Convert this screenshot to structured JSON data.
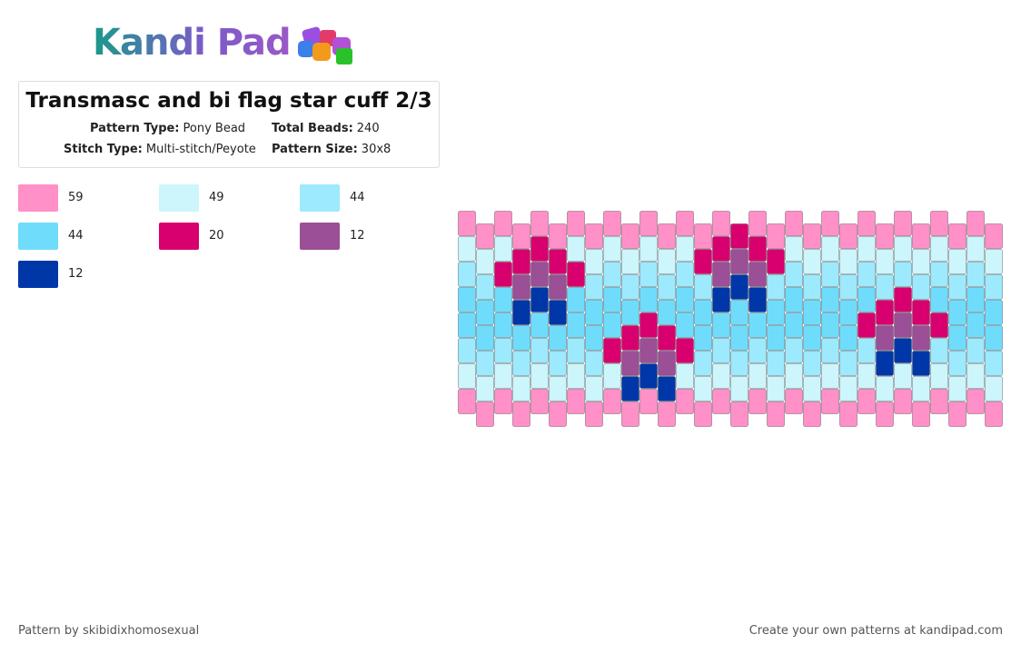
{
  "header": {
    "logo": "Kandi Pad"
  },
  "title": "Transmasc and bi flag star cuff 2/3",
  "details": [
    {
      "label": "Pattern Type:",
      "value": "Pony Bead"
    },
    {
      "label": "Total Beads:",
      "value": "240"
    },
    {
      "label": "Stitch Type:",
      "value": "Multi-stitch/Peyote"
    },
    {
      "label": "Pattern Size:",
      "value": "30x8"
    }
  ],
  "legend": [
    {
      "color": "#ff90c8",
      "count": 59
    },
    {
      "color": "#ccf5fc",
      "count": 49
    },
    {
      "color": "#9de9fd",
      "count": 44
    },
    {
      "color": "#70dcfc",
      "count": 44
    },
    {
      "color": "#d8006f",
      "count": 20
    },
    {
      "color": "#9a4f96",
      "count": 12
    },
    {
      "color": "#0037a8",
      "count": 12
    }
  ],
  "footer": {
    "author": "Pattern by skibidixhomosexual",
    "credit": "Create your own patterns at kandipad.com"
  }
}
